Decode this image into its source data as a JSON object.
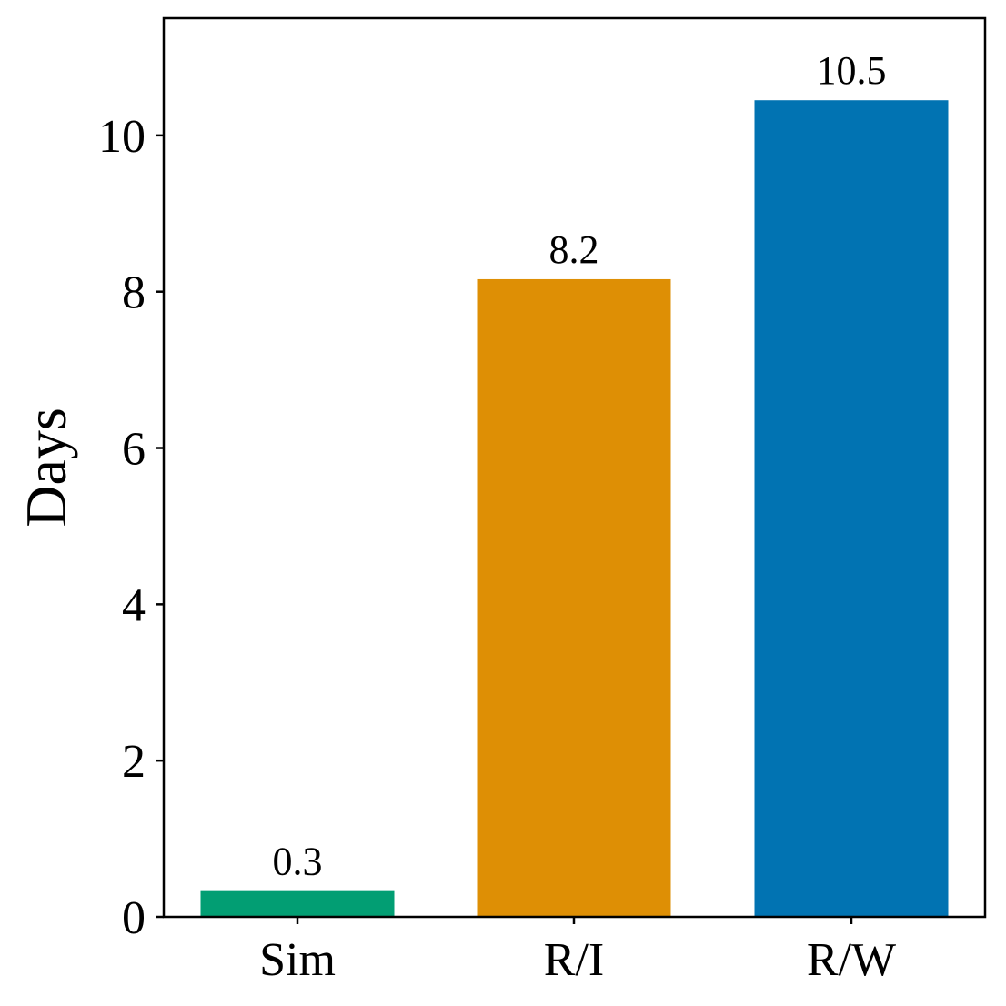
{
  "chart_data": {
    "type": "bar",
    "title": "",
    "xlabel": "",
    "ylabel": "Days",
    "ylim": [
      0,
      11.5
    ],
    "yticks": [
      0,
      2,
      4,
      6,
      8,
      10
    ],
    "categories": [
      "Sim",
      "R/I",
      "R/W"
    ],
    "values": [
      0.33,
      8.16,
      10.45
    ],
    "value_labels": [
      "0.3",
      "8.2",
      "10.5"
    ],
    "colors": [
      "#029e73",
      "#de8f05",
      "#0173b2"
    ],
    "grid": false,
    "legend": "none"
  }
}
